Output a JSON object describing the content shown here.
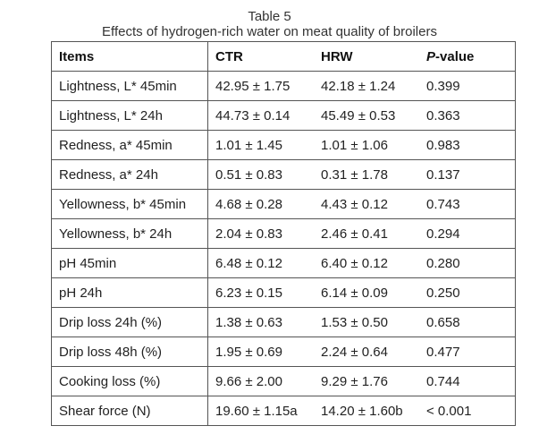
{
  "caption": {
    "table_number": "Table 5",
    "title": "Effects of hydrogen-rich water on meat quality of broilers"
  },
  "columns": {
    "items": "Items",
    "ctr": "CTR",
    "hrw": "HRW",
    "p_value_italic": "P",
    "p_value_rest": "-value"
  },
  "rows": [
    {
      "item": "Lightness, L* 45min",
      "ctr": "42.95 ± 1.75",
      "hrw": "42.18 ± 1.24",
      "p": "0.399"
    },
    {
      "item": "Lightness, L* 24h",
      "ctr": "44.73 ± 0.14",
      "hrw": "45.49 ± 0.53",
      "p": "0.363"
    },
    {
      "item": "Redness, a* 45min",
      "ctr": "1.01 ± 1.45",
      "hrw": "1.01 ± 1.06",
      "p": "0.983"
    },
    {
      "item": "Redness, a* 24h",
      "ctr": "0.51 ± 0.83",
      "hrw": "0.31 ± 1.78",
      "p": "0.137"
    },
    {
      "item": "Yellowness, b* 45min",
      "ctr": "4.68 ± 0.28",
      "hrw": "4.43 ± 0.12",
      "p": "0.743"
    },
    {
      "item": "Yellowness, b* 24h",
      "ctr": "2.04 ± 0.83",
      "hrw": "2.46 ± 0.41",
      "p": "0.294"
    },
    {
      "item": "pH 45min",
      "ctr": "6.48 ± 0.12",
      "hrw": "6.40 ± 0.12",
      "p": "0.280"
    },
    {
      "item": "pH 24h",
      "ctr": "6.23 ± 0.15",
      "hrw": "6.14 ± 0.09",
      "p": "0.250"
    },
    {
      "item": "Drip loss 24h (%)",
      "ctr": "1.38 ± 0.63",
      "hrw": "1.53 ± 0.50",
      "p": "0.658"
    },
    {
      "item": "Drip loss 48h (%)",
      "ctr": "1.95 ± 0.69",
      "hrw": "2.24 ± 0.64",
      "p": "0.477"
    },
    {
      "item": "Cooking loss (%)",
      "ctr": "9.66 ± 2.00",
      "hrw": "9.29 ± 1.76",
      "p": "0.744"
    },
    {
      "item": "Shear force (N)",
      "ctr": "19.60 ± 1.15a",
      "hrw": "14.20 ± 1.60b",
      "p": "< 0.001"
    }
  ]
}
